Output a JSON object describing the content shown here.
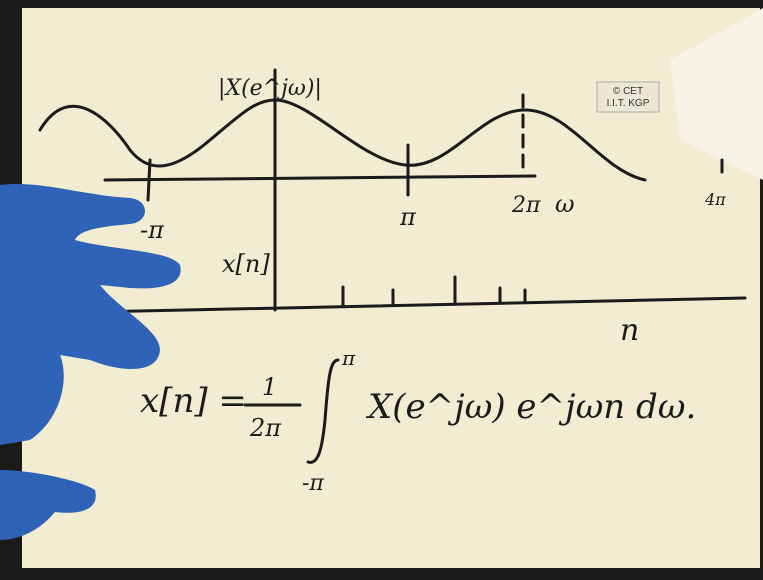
{
  "logo": {
    "line1": "© CET",
    "line2": "I.I.T. KGP"
  },
  "sketch": {
    "spectrum_label": "|X(e^jω)|",
    "omega_ticks": [
      "-π",
      "π",
      "2π",
      "4π"
    ],
    "omega_axis": "ω",
    "signal_label": "x[n]",
    "n_axis": "n",
    "formula": {
      "lhs": "x[n] =",
      "fraction_num": "1",
      "fraction_den": "2π",
      "upper_limit": "π",
      "lower_limit": "-π",
      "integrand": "X(e^jω) e^jωn dω."
    }
  }
}
